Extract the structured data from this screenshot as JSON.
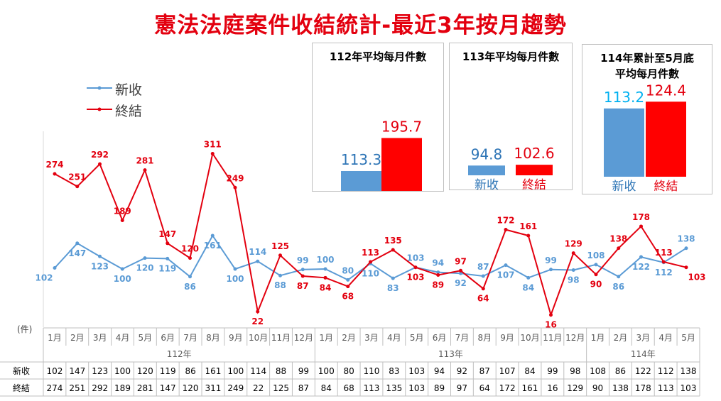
{
  "title": "憲法法庭案件收結統計-最近3年按月趨勢",
  "legend": {
    "received": "新收",
    "closed": "終結"
  },
  "unit_label": "(件)",
  "colors": {
    "received": "#5b9bd5",
    "closed": "#e3000f",
    "bar_blue": "#5b9bd5",
    "bar_red": "#ff0000",
    "label_blue": "#00b0f0"
  },
  "summary_boxes": [
    {
      "title_lines": [
        "112年平均每月件數"
      ],
      "received": 113.3,
      "closed": 195.7,
      "received_label": "新收",
      "closed_label": "終結"
    },
    {
      "title_lines": [
        "113年平均每月件數"
      ],
      "received": 94.8,
      "closed": 102.6,
      "received_label": "新收",
      "closed_label": "終結"
    },
    {
      "title_lines": [
        "114年累計至5月底",
        "平均每月件數"
      ],
      "received": 113.2,
      "closed": 124.4,
      "received_label": "新收",
      "closed_label": "終結"
    }
  ],
  "table": {
    "row_labels": [
      "新收",
      "終結"
    ],
    "years": [
      {
        "label": "112年",
        "months": [
          "1月",
          "2月",
          "3月",
          "4月",
          "5月",
          "6月",
          "7月",
          "8月",
          "9月",
          "10月",
          "11月",
          "12月"
        ]
      },
      {
        "label": "113年",
        "months": [
          "1月",
          "2月",
          "3月",
          "4月",
          "5月",
          "6月",
          "7月",
          "8月",
          "9月",
          "10月",
          "11月",
          "12月"
        ]
      },
      {
        "label": "114年",
        "months": [
          "1月",
          "2月",
          "3月",
          "4月",
          "5月"
        ]
      }
    ]
  },
  "chart_data": {
    "type": "line",
    "title": "憲法法庭案件收結統計-最近3年按月趨勢",
    "ylabel": "(件)",
    "ylim": [
      0,
      330
    ],
    "categories": [
      "112年1月",
      "112年2月",
      "112年3月",
      "112年4月",
      "112年5月",
      "112年6月",
      "112年7月",
      "112年8月",
      "112年9月",
      "112年10月",
      "112年11月",
      "112年12月",
      "113年1月",
      "113年2月",
      "113年3月",
      "113年4月",
      "113年5月",
      "113年6月",
      "113年7月",
      "113年8月",
      "113年9月",
      "113年10月",
      "113年11月",
      "113年12月",
      "114年1月",
      "114年2月",
      "114年3月",
      "114年4月",
      "114年5月"
    ],
    "series": [
      {
        "name": "新收",
        "values": [
          102,
          147,
          123,
          100,
          120,
          119,
          86,
          161,
          100,
          114,
          88,
          99,
          100,
          80,
          110,
          83,
          103,
          94,
          92,
          87,
          107,
          84,
          99,
          98,
          108,
          86,
          122,
          112,
          138
        ]
      },
      {
        "name": "終結",
        "values": [
          274,
          251,
          292,
          189,
          281,
          147,
          120,
          311,
          249,
          22,
          125,
          87,
          84,
          68,
          113,
          135,
          103,
          89,
          97,
          64,
          172,
          161,
          16,
          129,
          90,
          138,
          178,
          113,
          103
        ]
      }
    ],
    "legend_position": "top-left",
    "grid": false
  }
}
